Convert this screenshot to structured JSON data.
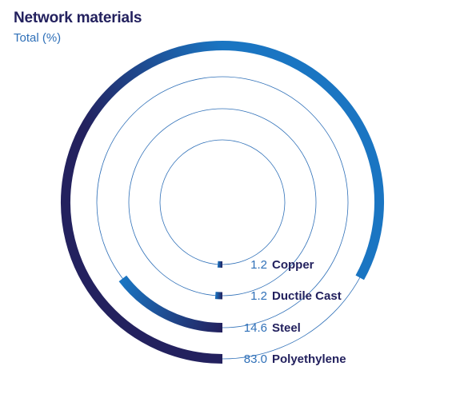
{
  "chart_data": {
    "type": "radial_bar",
    "title": "Network materials",
    "subtitle": "Total (%)",
    "categories": [
      "Polyethylene",
      "Steel",
      "Ductile Cast",
      "Copper"
    ],
    "values": [
      83.0,
      14.6,
      1.2,
      1.2
    ],
    "value_labels": [
      "83.0",
      "14.6",
      "1.2",
      "1.2"
    ],
    "unit": "%",
    "max": 100,
    "colors": {
      "start": "#23215e",
      "end": "#1a75c2",
      "track": "#2f70b8",
      "label": "#23215e",
      "value": "#2f70b8"
    }
  }
}
